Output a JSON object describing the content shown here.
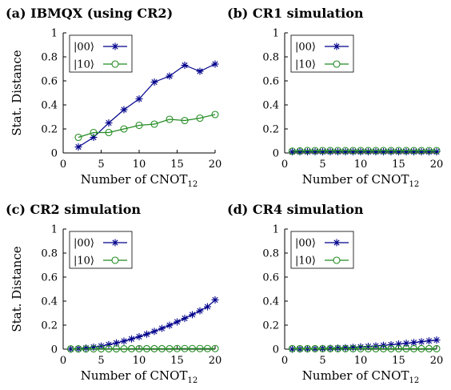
{
  "chart_data": [
    {
      "type": "line",
      "panel_label": "(a)",
      "title": "IBMQX (using CR2)",
      "xlabel": "Number of CNOT",
      "xlabel_subscript": "12",
      "ylabel": "Stat. Distance",
      "xlim": [
        0,
        20
      ],
      "ylim": [
        0,
        1
      ],
      "xticks": [
        0,
        5,
        10,
        15,
        20
      ],
      "yticks": [
        0,
        0.2,
        0.4,
        0.6,
        0.8,
        1
      ],
      "ytick_labels": [
        "0",
        "0.2",
        "0.4",
        "0.6",
        "0.8",
        "1"
      ],
      "legend_position": "top-left",
      "grid": false,
      "series": [
        {
          "name": "|00⟩",
          "color": "#00008b",
          "marker": "asterisk",
          "x": [
            2,
            4,
            6,
            8,
            10,
            12,
            14,
            16,
            18,
            20
          ],
          "y": [
            0.05,
            0.13,
            0.25,
            0.36,
            0.45,
            0.59,
            0.64,
            0.73,
            0.68,
            0.74
          ]
        },
        {
          "name": "|10⟩",
          "color": "#228b22",
          "marker": "circle",
          "x": [
            2,
            4,
            6,
            8,
            10,
            12,
            14,
            16,
            18,
            20
          ],
          "y": [
            0.13,
            0.17,
            0.17,
            0.2,
            0.23,
            0.24,
            0.28,
            0.27,
            0.29,
            0.32
          ]
        }
      ]
    },
    {
      "type": "line",
      "panel_label": "(b)",
      "title": "CR1 simulation",
      "xlabel": "Number of CNOT",
      "xlabel_subscript": "12",
      "ylabel": "",
      "xlim": [
        0,
        20
      ],
      "ylim": [
        0,
        1
      ],
      "xticks": [
        0,
        5,
        10,
        15,
        20
      ],
      "yticks": [
        0,
        0.2,
        0.4,
        0.6,
        0.8,
        1
      ],
      "ytick_labels": [
        "0",
        "0.2",
        "0.4",
        "0.6",
        "0.8",
        "1"
      ],
      "legend_position": "top-left",
      "grid": false,
      "series": [
        {
          "name": "|00⟩",
          "color": "#00008b",
          "marker": "asterisk",
          "x": [
            1,
            2,
            3,
            4,
            5,
            6,
            7,
            8,
            9,
            10,
            11,
            12,
            13,
            14,
            15,
            16,
            17,
            18,
            19,
            20
          ],
          "y": [
            0.01,
            0.01,
            0.01,
            0.01,
            0.01,
            0.01,
            0.01,
            0.01,
            0.01,
            0.01,
            0.01,
            0.01,
            0.01,
            0.01,
            0.01,
            0.01,
            0.01,
            0.01,
            0.01,
            0.01
          ]
        },
        {
          "name": "|10⟩",
          "color": "#228b22",
          "marker": "circle",
          "x": [
            1,
            2,
            3,
            4,
            5,
            6,
            7,
            8,
            9,
            10,
            11,
            12,
            13,
            14,
            15,
            16,
            17,
            18,
            19,
            20
          ],
          "y": [
            0.015,
            0.017,
            0.02,
            0.02,
            0.02,
            0.02,
            0.02,
            0.02,
            0.02,
            0.02,
            0.02,
            0.02,
            0.02,
            0.02,
            0.02,
            0.02,
            0.02,
            0.02,
            0.02,
            0.02
          ]
        }
      ]
    },
    {
      "type": "line",
      "panel_label": "(c)",
      "title": "CR2 simulation",
      "xlabel": "Number of CNOT",
      "xlabel_subscript": "12",
      "ylabel": "Stat. Distance",
      "xlim": [
        0,
        20
      ],
      "ylim": [
        0,
        1
      ],
      "xticks": [
        0,
        5,
        10,
        15,
        20
      ],
      "yticks": [
        0,
        0.2,
        0.4,
        0.6,
        0.8,
        1
      ],
      "ytick_labels": [
        "0",
        "0.2",
        "0.4",
        "0.6",
        "0.8",
        "1"
      ],
      "legend_position": "top-left",
      "grid": false,
      "series": [
        {
          "name": "|00⟩",
          "color": "#00008b",
          "marker": "asterisk",
          "x": [
            1,
            2,
            3,
            4,
            5,
            6,
            7,
            8,
            9,
            10,
            11,
            12,
            13,
            14,
            15,
            16,
            17,
            18,
            19,
            20
          ],
          "y": [
            0.001,
            0.004,
            0.009,
            0.017,
            0.026,
            0.038,
            0.052,
            0.067,
            0.085,
            0.104,
            0.125,
            0.148,
            0.173,
            0.199,
            0.227,
            0.256,
            0.287,
            0.319,
            0.353,
            0.41
          ]
        },
        {
          "name": "|10⟩",
          "color": "#228b22",
          "marker": "circle",
          "x": [
            1,
            2,
            3,
            4,
            5,
            6,
            7,
            8,
            9,
            10,
            11,
            12,
            13,
            14,
            15,
            16,
            17,
            18,
            19,
            20
          ],
          "y": [
            0.002,
            0.002,
            0.002,
            0.003,
            0.003,
            0.003,
            0.003,
            0.003,
            0.004,
            0.004,
            0.004,
            0.004,
            0.004,
            0.004,
            0.005,
            0.005,
            0.005,
            0.005,
            0.005,
            0.005
          ]
        }
      ]
    },
    {
      "type": "line",
      "panel_label": "(d)",
      "title": "CR4 simulation",
      "xlabel": "Number of CNOT",
      "xlabel_subscript": "12",
      "ylabel": "",
      "xlim": [
        0,
        20
      ],
      "ylim": [
        0,
        1
      ],
      "xticks": [
        0,
        5,
        10,
        15,
        20
      ],
      "yticks": [
        0,
        0.2,
        0.4,
        0.6,
        0.8,
        1
      ],
      "ytick_labels": [
        "0",
        "0.2",
        "0.4",
        "0.6",
        "0.8",
        "1"
      ],
      "legend_position": "top-left",
      "grid": false,
      "series": [
        {
          "name": "|00⟩",
          "color": "#00008b",
          "marker": "asterisk",
          "x": [
            1,
            2,
            3,
            4,
            5,
            6,
            7,
            8,
            9,
            10,
            11,
            12,
            13,
            14,
            15,
            16,
            17,
            18,
            19,
            20
          ],
          "y": [
            0.0002,
            0.0008,
            0.0018,
            0.003,
            0.005,
            0.007,
            0.009,
            0.012,
            0.015,
            0.019,
            0.023,
            0.027,
            0.032,
            0.037,
            0.043,
            0.049,
            0.055,
            0.062,
            0.069,
            0.076
          ]
        },
        {
          "name": "|10⟩",
          "color": "#228b22",
          "marker": "circle",
          "x": [
            1,
            2,
            3,
            4,
            5,
            6,
            7,
            8,
            9,
            10,
            11,
            12,
            13,
            14,
            15,
            16,
            17,
            18,
            19,
            20
          ],
          "y": [
            0.004,
            0.004,
            0.004,
            0.004,
            0.004,
            0.004,
            0.004,
            0.004,
            0.004,
            0.004,
            0.004,
            0.004,
            0.004,
            0.004,
            0.004,
            0.004,
            0.004,
            0.004,
            0.004,
            0.004
          ]
        }
      ]
    }
  ]
}
